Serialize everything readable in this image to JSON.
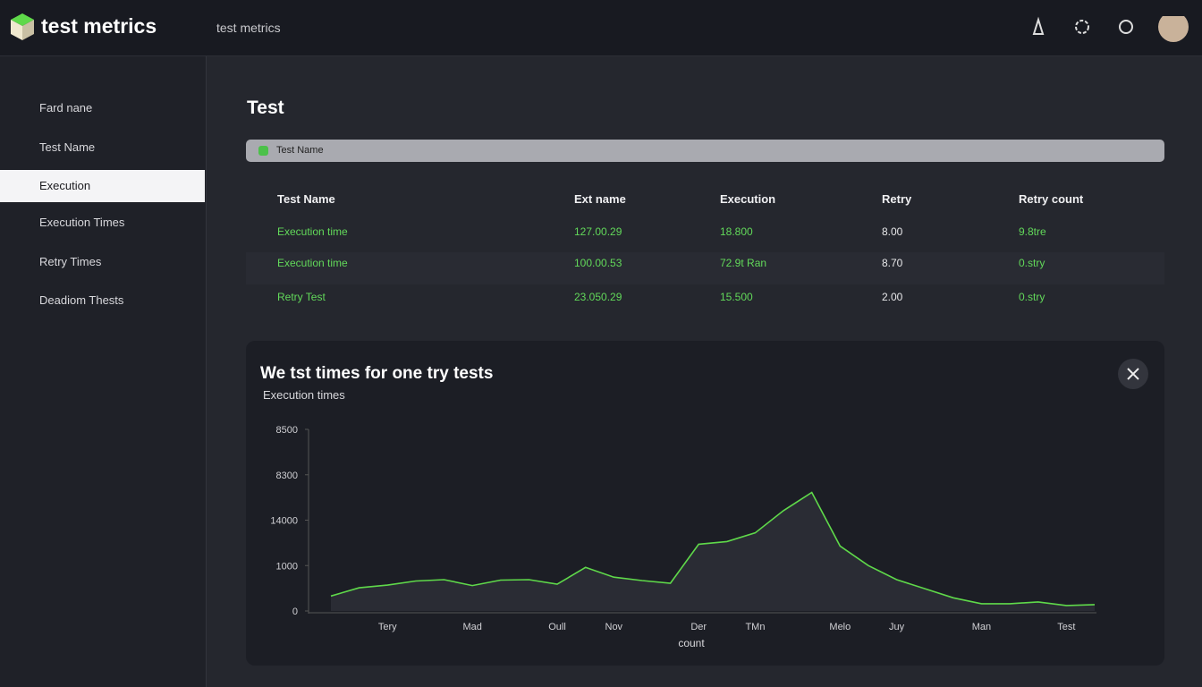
{
  "header": {
    "logo": "test metrics",
    "breadcrumb": "test metrics"
  },
  "sidebar": {
    "items": [
      "Fard nane",
      "Test Name",
      "Execution",
      "Execution Times",
      "Retry Times",
      "Deadiom Thests"
    ]
  },
  "page": {
    "title": "Test",
    "filter": "Test Name"
  },
  "table": {
    "columns": [
      "Test Name",
      "Ext name",
      "Execution",
      "Retry",
      "Retry count"
    ],
    "rows": [
      [
        "Execution time",
        "127.00.29",
        "18.800",
        "8.00",
        "9.8tre"
      ],
      [
        "Execution time",
        "100.00.53",
        "72.9t Ran",
        "8.70",
        "0.stry"
      ],
      [
        "Retry Test",
        "23.050.29",
        "15.500",
        "2.00",
        "0.stry"
      ]
    ]
  },
  "chart_data": {
    "type": "line",
    "title": "We tst times for one try tests",
    "subtitle": "Execution times",
    "x_label": "count",
    "categories": [
      null,
      null,
      "Tery",
      null,
      null,
      "Mad",
      null,
      null,
      "Oull",
      null,
      "Nov",
      null,
      null,
      "Der",
      null,
      "TMn",
      null,
      null,
      "Melo",
      null,
      "Juy",
      null,
      null,
      "Man",
      null,
      null,
      "Test",
      null
    ],
    "values": [
      330,
      510,
      570,
      660,
      690,
      560,
      680,
      690,
      590,
      960,
      745,
      670,
      610,
      1470,
      1530,
      1720,
      2210,
      2610,
      1430,
      1000,
      690,
      490,
      290,
      160,
      160,
      200,
      120,
      140
    ],
    "color": "#5fd94a",
    "ylim": [
      0,
      4000
    ],
    "yticks": [
      0,
      1000,
      {
        "value": 2000,
        "label": "14000"
      },
      {
        "value": 3000,
        "label": "8300"
      },
      {
        "value": 4000,
        "label": "8500"
      }
    ]
  }
}
